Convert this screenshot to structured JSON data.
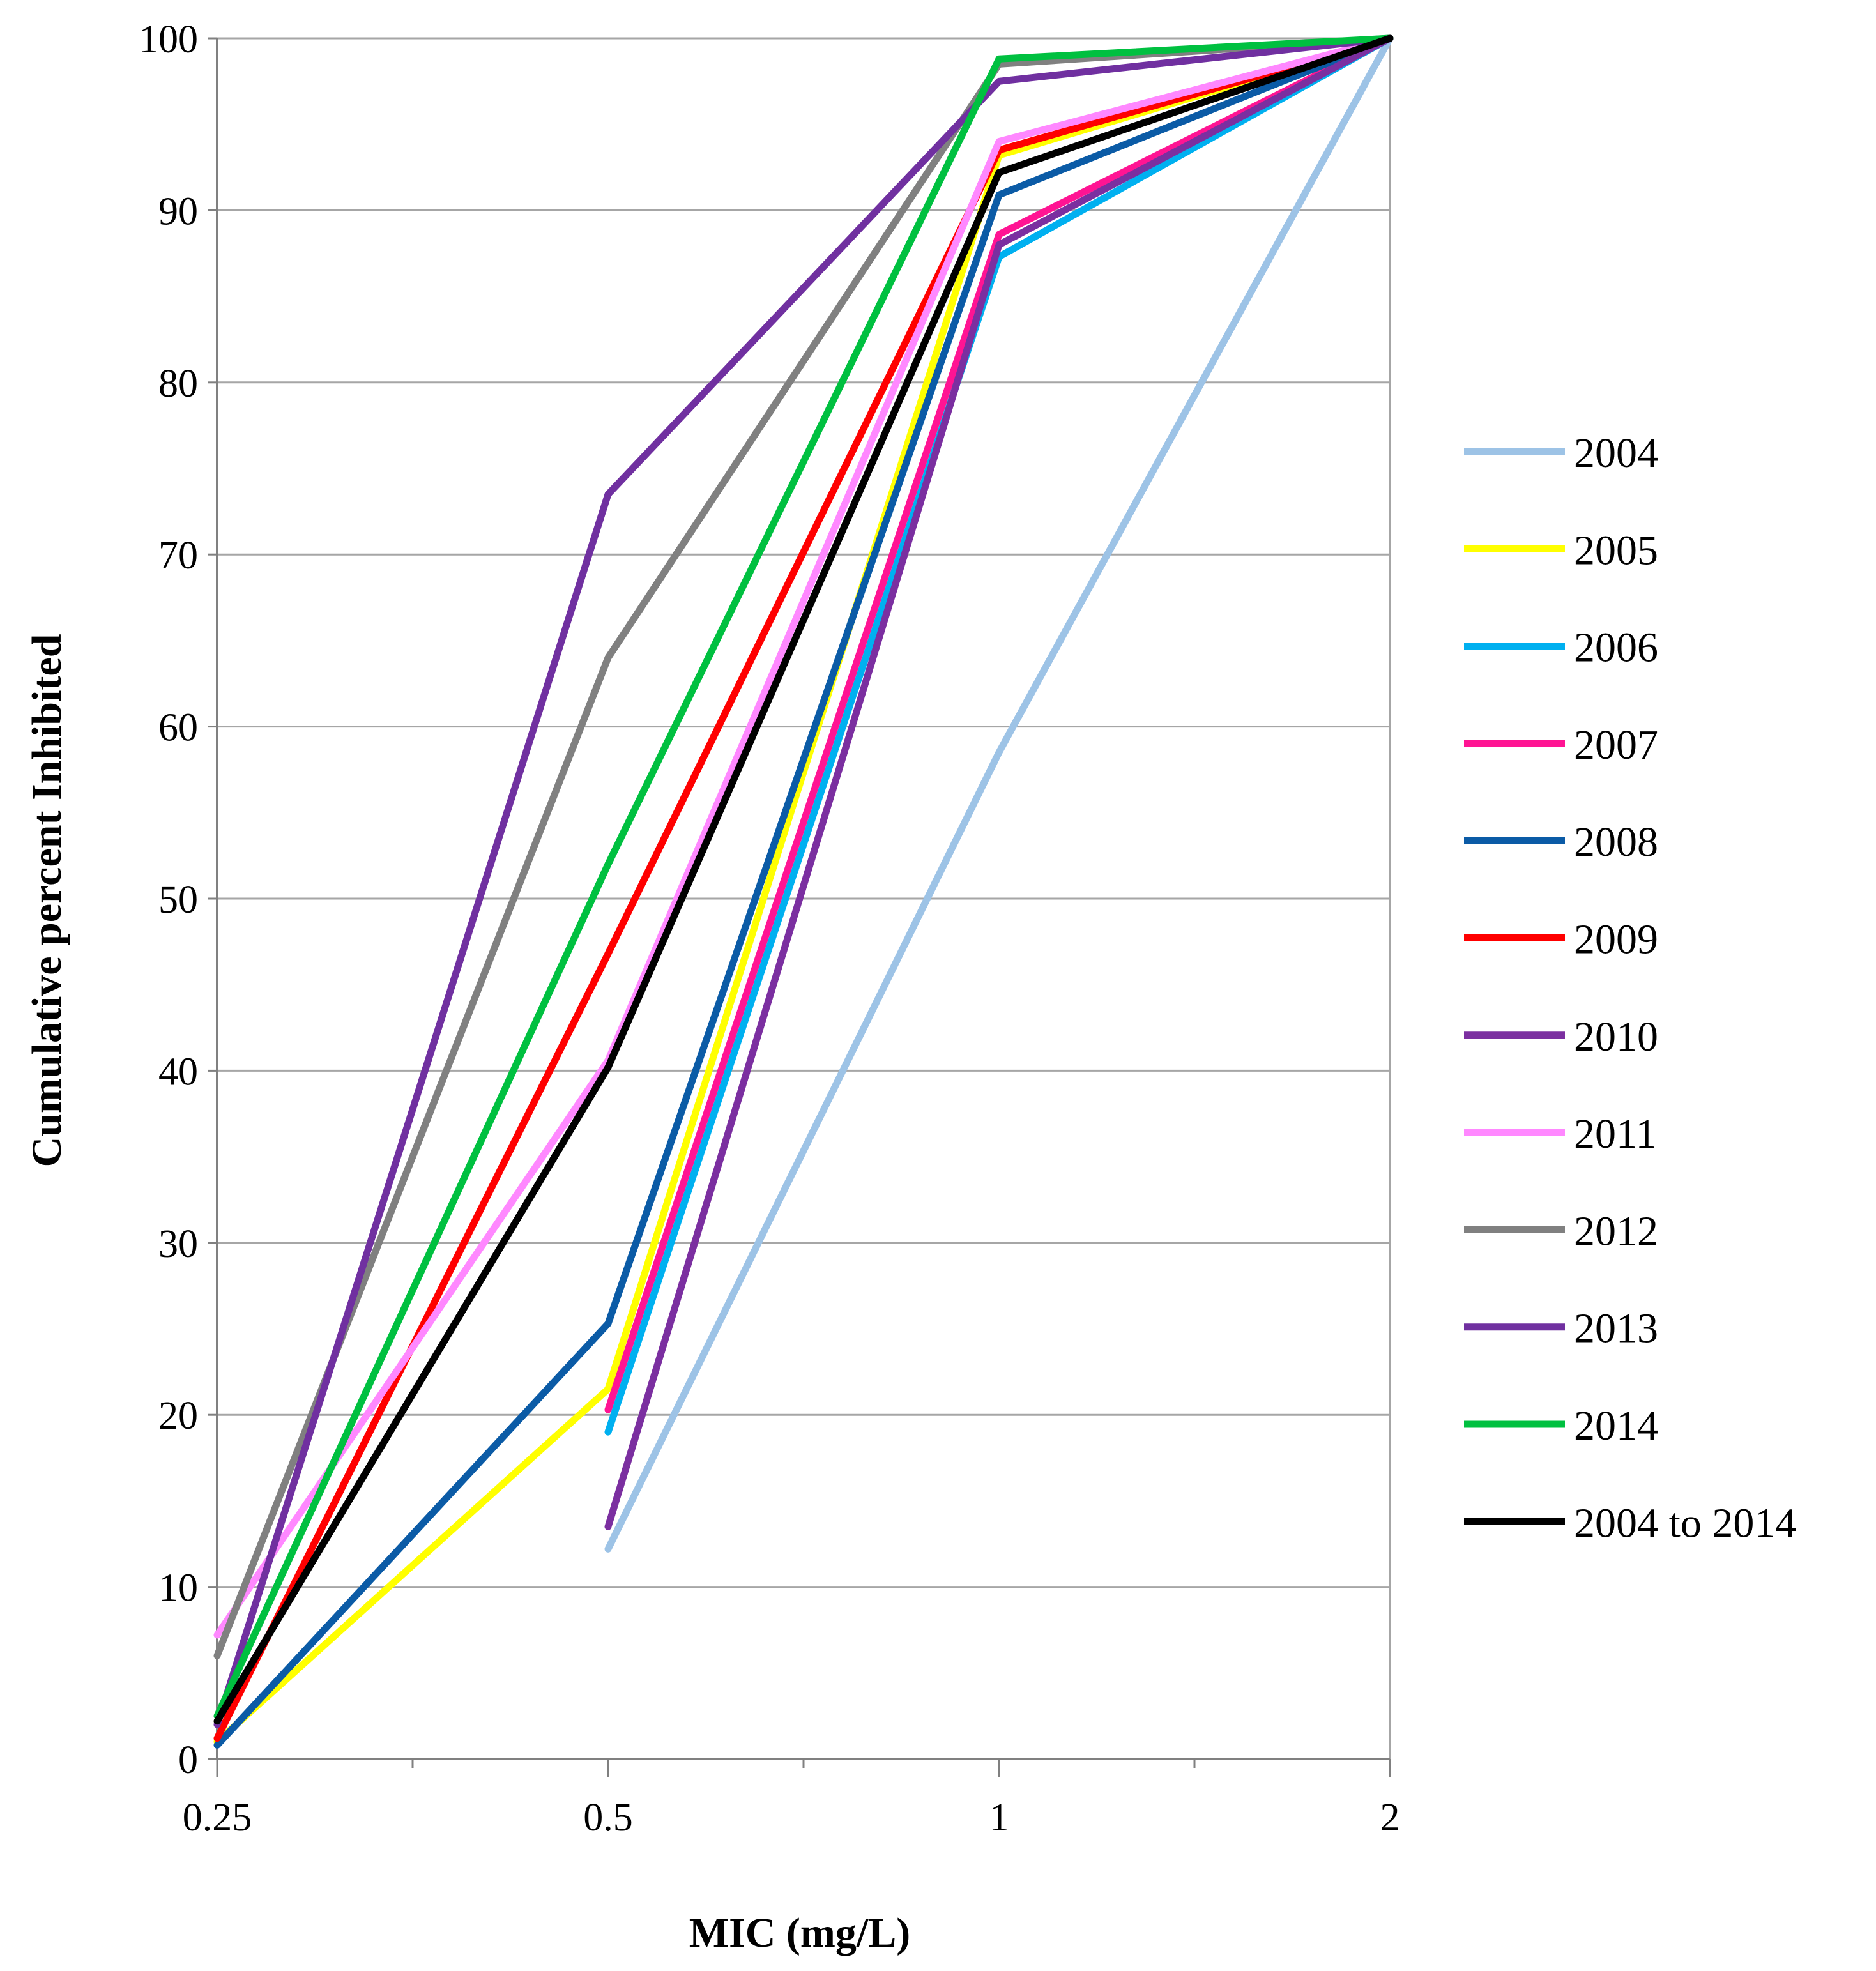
{
  "chart_data": {
    "type": "line",
    "title": "",
    "xlabel": "MIC (mg/L)",
    "ylabel": "Cumulative percent Inhibited",
    "x_scale": "log2",
    "categories": [
      "0.25",
      "0.5",
      "1",
      "2"
    ],
    "x": [
      0.25,
      0.5,
      1,
      2
    ],
    "ylim": [
      0,
      100
    ],
    "yticks": [
      "0",
      "10",
      "20",
      "30",
      "40",
      "50",
      "60",
      "70",
      "80",
      "90",
      "100"
    ],
    "grid": true,
    "legend": "right",
    "series": [
      {
        "name": "2004",
        "color": "#9DC3E6",
        "x": [
          0.5,
          1,
          2
        ],
        "values": [
          12.2,
          58.5,
          100
        ]
      },
      {
        "name": "2005",
        "color": "#FFFF00",
        "x": [
          0.25,
          0.5,
          1,
          2
        ],
        "values": [
          1.0,
          21.5,
          93.2,
          100
        ]
      },
      {
        "name": "2006",
        "color": "#00B0F0",
        "x": [
          0.5,
          1,
          2
        ],
        "values": [
          19.0,
          87.3,
          100
        ]
      },
      {
        "name": "2007",
        "color": "#FF1493",
        "x": [
          0.5,
          1,
          2
        ],
        "values": [
          20.3,
          88.6,
          100
        ]
      },
      {
        "name": "2008",
        "color": "#0B5BA6",
        "x": [
          0.25,
          0.5,
          1,
          2
        ],
        "values": [
          0.8,
          25.3,
          90.9,
          100
        ]
      },
      {
        "name": "2009",
        "color": "#FF0000",
        "x": [
          0.25,
          0.5,
          1,
          2
        ],
        "values": [
          1.2,
          46.8,
          93.5,
          100
        ]
      },
      {
        "name": "2010",
        "color": "#7B2FA0",
        "x": [
          0.5,
          1,
          2
        ],
        "values": [
          13.5,
          88.0,
          100
        ]
      },
      {
        "name": "2011",
        "color": "#FF88FF",
        "x": [
          0.25,
          0.5,
          1,
          2
        ],
        "values": [
          7.2,
          40.6,
          94.0,
          100
        ]
      },
      {
        "name": "2012",
        "color": "#808080",
        "x": [
          0.25,
          0.5,
          1,
          2
        ],
        "values": [
          6.0,
          64.0,
          98.5,
          100
        ]
      },
      {
        "name": "2013",
        "color": "#7030A0",
        "x": [
          0.25,
          0.5,
          1,
          2
        ],
        "values": [
          2.0,
          73.5,
          97.5,
          100
        ]
      },
      {
        "name": "2014",
        "color": "#00C040",
        "x": [
          0.25,
          0.5,
          1,
          2
        ],
        "values": [
          2.5,
          52.0,
          98.8,
          100
        ]
      },
      {
        "name": "2004 to 2014",
        "color": "#000000",
        "x": [
          0.25,
          0.5,
          1,
          2
        ],
        "values": [
          2.2,
          40.2,
          92.2,
          100
        ]
      }
    ]
  }
}
